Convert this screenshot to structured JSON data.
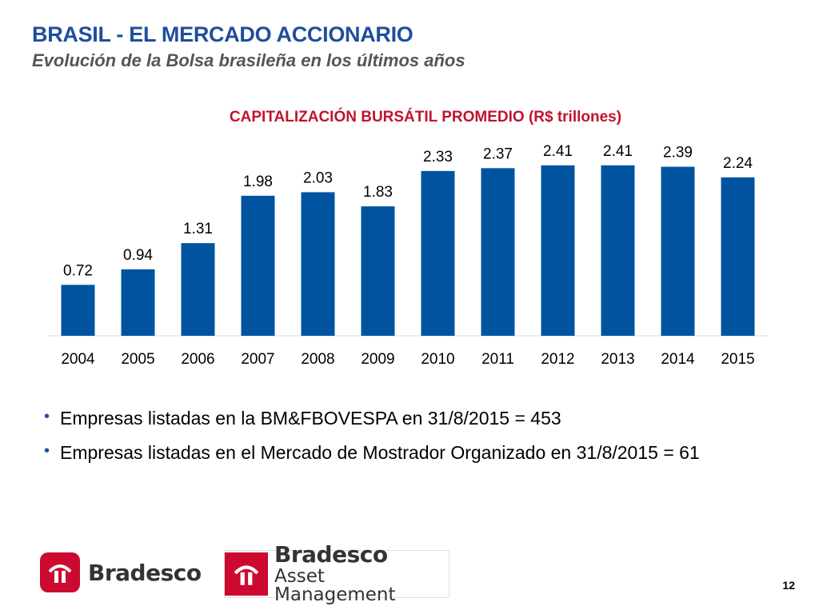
{
  "header": {
    "title": "BRASIL - EL MERCADO ACCIONARIO",
    "subtitle": "Evolución de la Bolsa brasileña en los últimos años"
  },
  "chart_data": {
    "type": "bar",
    "title": "CAPITALIZACIÓN BURSÁTIL PROMEDIO (R$ trillones)",
    "categories": [
      "2004",
      "2005",
      "2006",
      "2007",
      "2008",
      "2009",
      "2010",
      "2011",
      "2012",
      "2013",
      "2014",
      "2015"
    ],
    "values": [
      0.72,
      0.94,
      1.31,
      1.98,
      2.03,
      1.83,
      2.33,
      2.37,
      2.41,
      2.41,
      2.39,
      2.24
    ],
    "value_labels": [
      "0.72",
      "0.94",
      "1.31",
      "1.98",
      "2.03",
      "1.83",
      "2.33",
      "2.37",
      "2.41",
      "2.41",
      "2.39",
      "2.24"
    ],
    "ylim": [
      0,
      2.6
    ],
    "grid": false,
    "legend": "none",
    "bar_color": "#00549f"
  },
  "bullets": [
    "Empresas listadas en la BM&FBOVESPA en 31/8/2015 = 453",
    "Empresas listadas en el Mercado de Mostrador Organizado en 31/8/2015 = 61"
  ],
  "logos": {
    "bradesco": "Bradesco",
    "asset_line1": "Bradesco",
    "asset_line2": "Asset Management"
  },
  "page_number": "12",
  "colors": {
    "title": "#1f4e9c",
    "chart_title": "#c0142c",
    "logo_red": "#cc092f"
  },
  "icons": {
    "bullet": "bullet-dot-icon",
    "logo": "bradesco-logo-icon"
  }
}
